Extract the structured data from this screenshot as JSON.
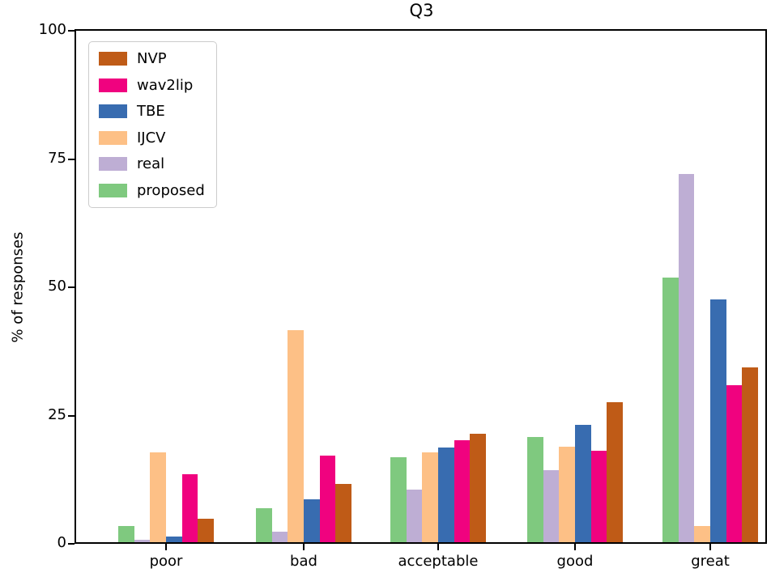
{
  "chart_data": {
    "type": "bar",
    "title": "Q3",
    "ylabel": "% of responses",
    "xlabel": "",
    "categories": [
      "poor",
      "bad",
      "acceptable",
      "good",
      "great"
    ],
    "yticks": [
      0,
      25,
      50,
      75,
      100
    ],
    "ylim": [
      0,
      100
    ],
    "grid": false,
    "legend_position": "upper-left",
    "bar_draw_order": "reverse-of-legend (proposed leftmost, NVP rightmost in each group)",
    "series": [
      {
        "name": "NVP",
        "color": "#bf5b17",
        "values": [
          4.9,
          11.7,
          21.5,
          27.6,
          34.4
        ]
      },
      {
        "name": "wav2lip",
        "color": "#f0027f",
        "values": [
          13.6,
          17.2,
          20.2,
          18.1,
          30.9
        ]
      },
      {
        "name": "TBE",
        "color": "#386cb0",
        "values": [
          1.4,
          8.7,
          18.8,
          23.2,
          47.6
        ]
      },
      {
        "name": "IJCV",
        "color": "#fdc086",
        "values": [
          17.8,
          41.6,
          17.8,
          19.0,
          3.5
        ]
      },
      {
        "name": "real",
        "color": "#beaed4",
        "values": [
          0.8,
          2.4,
          10.5,
          14.3,
          72.1
        ]
      },
      {
        "name": "proposed",
        "color": "#7fc97f",
        "values": [
          3.5,
          6.9,
          16.9,
          20.8,
          51.9
        ]
      }
    ]
  }
}
